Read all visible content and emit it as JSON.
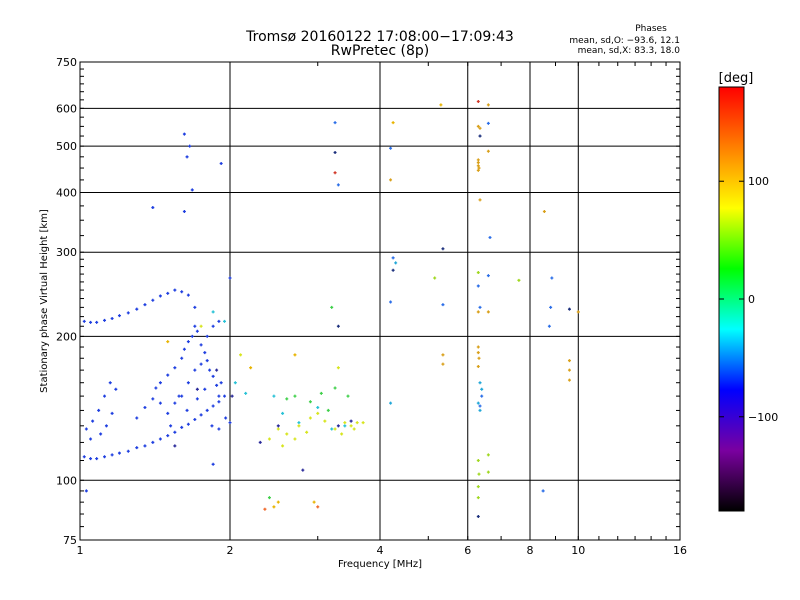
{
  "chart_data": {
    "type": "scatter",
    "title": "Tromsø 20160122 17:08:00−17:09:43",
    "subtitle": "RwPretec (8p)",
    "xlabel": "Frequency [MHz]",
    "ylabel": "Stationary phase Virtual Height [km]",
    "x_scale": "log",
    "y_scale": "log",
    "xlim": [
      1,
      16
    ],
    "ylim": [
      75,
      750
    ],
    "x_ticks": [
      "1",
      "2",
      "4",
      "6",
      "8",
      "10",
      "16"
    ],
    "y_ticks": [
      "75",
      "100",
      "200",
      "300",
      "400",
      "500",
      "600",
      "750"
    ],
    "x_gridlines": [
      2,
      4,
      6,
      8,
      10
    ],
    "y_gridlines": [
      100,
      200,
      300,
      400,
      500,
      600
    ],
    "grid": true,
    "info": {
      "heading": "Phases",
      "line1": "mean, sd,O: −93.6, 12.1",
      "line2": "mean, sd,X: 83.3, 18.0"
    },
    "colorbar": {
      "label": "[deg]",
      "range": [
        -180,
        180
      ],
      "ticks": [
        "100",
        "0",
        "−100"
      ],
      "tick_values": [
        100,
        0,
        -100
      ],
      "colors": [
        "#000000",
        "#7a00a0",
        "#0000ff",
        "#00ffff",
        "#00ff00",
        "#ffff00",
        "#ff8000",
        "#ff0000"
      ]
    },
    "series": [
      {
        "color": "#1f3fe0",
        "points": [
          [
            1.02,
            215
          ],
          [
            1.05,
            214
          ],
          [
            1.08,
            214
          ],
          [
            1.12,
            216
          ],
          [
            1.16,
            218
          ],
          [
            1.2,
            221
          ],
          [
            1.25,
            224
          ],
          [
            1.3,
            228
          ],
          [
            1.35,
            233
          ],
          [
            1.4,
            238
          ],
          [
            1.45,
            243
          ],
          [
            1.5,
            246
          ],
          [
            1.55,
            250
          ],
          [
            1.6,
            248
          ],
          [
            1.65,
            244
          ],
          [
            1.7,
            230
          ],
          [
            1.02,
            112
          ],
          [
            1.05,
            111
          ],
          [
            1.08,
            111
          ],
          [
            1.12,
            112
          ],
          [
            1.16,
            113
          ],
          [
            1.2,
            114
          ],
          [
            1.25,
            115
          ],
          [
            1.3,
            117
          ],
          [
            1.35,
            118
          ],
          [
            1.4,
            120
          ],
          [
            1.45,
            122
          ],
          [
            1.5,
            124
          ],
          [
            1.55,
            126
          ],
          [
            1.6,
            129
          ],
          [
            1.65,
            131
          ],
          [
            1.7,
            134
          ],
          [
            1.75,
            137
          ],
          [
            1.8,
            140
          ],
          [
            1.85,
            143
          ],
          [
            1.9,
            146
          ],
          [
            1.03,
            128
          ],
          [
            1.06,
            133
          ],
          [
            1.09,
            140
          ],
          [
            1.12,
            150
          ],
          [
            1.15,
            160
          ],
          [
            1.18,
            155
          ],
          [
            1.1,
            125
          ],
          [
            1.05,
            122
          ],
          [
            1.13,
            130
          ],
          [
            1.16,
            138
          ],
          [
            1.3,
            135
          ],
          [
            1.35,
            142
          ],
          [
            1.4,
            148
          ],
          [
            1.42,
            156
          ],
          [
            1.45,
            160
          ],
          [
            1.5,
            166
          ],
          [
            1.55,
            172
          ],
          [
            1.6,
            180
          ],
          [
            1.62,
            188
          ],
          [
            1.65,
            195
          ],
          [
            1.68,
            200
          ],
          [
            1.7,
            210
          ],
          [
            1.72,
            205
          ],
          [
            1.75,
            192
          ],
          [
            1.78,
            185
          ],
          [
            1.8,
            178
          ],
          [
            1.82,
            170
          ],
          [
            1.85,
            165
          ],
          [
            1.88,
            158
          ],
          [
            1.9,
            150
          ],
          [
            1.92,
            160
          ],
          [
            1.95,
            150
          ],
          [
            1.5,
            138
          ],
          [
            1.55,
            145
          ],
          [
            1.6,
            150
          ],
          [
            1.65,
            160
          ],
          [
            1.7,
            170
          ],
          [
            1.75,
            175
          ],
          [
            1.8,
            200
          ],
          [
            1.85,
            210
          ],
          [
            1.9,
            215
          ],
          [
            1.45,
            145
          ],
          [
            1.52,
            130
          ],
          [
            1.58,
            150
          ],
          [
            1.64,
            140
          ],
          [
            1.72,
            148
          ],
          [
            1.78,
            155
          ],
          [
            1.84,
            130
          ],
          [
            1.9,
            128
          ],
          [
            1.96,
            135
          ],
          [
            2.0,
            132
          ],
          [
            1.62,
            530
          ],
          [
            1.64,
            475
          ],
          [
            1.66,
            500
          ],
          [
            1.68,
            405
          ],
          [
            1.62,
            365
          ],
          [
            1.92,
            460
          ],
          [
            1.4,
            372
          ],
          [
            1.85,
            108
          ],
          [
            1.03,
            95
          ],
          [
            2.0,
            265
          ]
        ]
      },
      {
        "color": "#2a2a9a",
        "points": [
          [
            1.72,
            155
          ],
          [
            1.88,
            170
          ],
          [
            2.02,
            150
          ],
          [
            1.55,
            118
          ],
          [
            2.3,
            120
          ],
          [
            2.5,
            130
          ],
          [
            2.8,
            105
          ],
          [
            3.3,
            130
          ],
          [
            3.5,
            133
          ]
        ]
      },
      {
        "color": "#29c2d6",
        "points": [
          [
            1.95,
            215
          ],
          [
            2.05,
            160
          ],
          [
            2.15,
            152
          ],
          [
            2.45,
            150
          ],
          [
            2.55,
            138
          ],
          [
            2.75,
            132
          ],
          [
            3.0,
            142
          ],
          [
            3.2,
            128
          ],
          [
            3.4,
            130
          ],
          [
            1.85,
            225
          ]
        ]
      },
      {
        "color": "#3fd04a",
        "points": [
          [
            2.6,
            148
          ],
          [
            2.7,
            150
          ],
          [
            2.9,
            146
          ],
          [
            3.05,
            152
          ],
          [
            3.15,
            140
          ],
          [
            3.25,
            156
          ],
          [
            3.45,
            150
          ],
          [
            2.4,
            92
          ],
          [
            3.2,
            230
          ]
        ]
      },
      {
        "color": "#d7e51e",
        "points": [
          [
            2.4,
            122
          ],
          [
            2.5,
            128
          ],
          [
            2.6,
            125
          ],
          [
            2.75,
            130
          ],
          [
            2.9,
            135
          ],
          [
            3.0,
            138
          ],
          [
            3.1,
            133
          ],
          [
            3.25,
            128
          ],
          [
            3.4,
            132
          ],
          [
            3.5,
            130
          ],
          [
            3.6,
            132
          ],
          [
            3.7,
            132
          ],
          [
            2.55,
            118
          ],
          [
            2.7,
            122
          ],
          [
            2.85,
            126
          ],
          [
            3.35,
            125
          ],
          [
            3.55,
            128
          ],
          [
            3.3,
            172
          ],
          [
            1.75,
            210
          ],
          [
            2.1,
            183
          ]
        ]
      },
      {
        "color": "#e8b400",
        "points": [
          [
            1.5,
            195
          ],
          [
            2.2,
            172
          ],
          [
            2.45,
            88
          ],
          [
            2.5,
            90
          ],
          [
            2.7,
            183
          ],
          [
            2.95,
            90
          ],
          [
            4.25,
            560
          ],
          [
            5.3,
            610
          ]
        ]
      },
      {
        "color": "#f06a2c",
        "points": [
          [
            3.0,
            88
          ],
          [
            2.35,
            87
          ]
        ]
      },
      {
        "color": "#d23a2a",
        "points": [
          [
            3.25,
            440
          ],
          [
            6.3,
            620
          ]
        ]
      },
      {
        "color": "#1b2f7c",
        "points": [
          [
            3.25,
            485
          ],
          [
            3.3,
            210
          ],
          [
            4.25,
            275
          ],
          [
            5.35,
            305
          ],
          [
            6.35,
            525
          ],
          [
            9.6,
            228
          ],
          [
            6.3,
            84
          ]
        ]
      },
      {
        "color": "#2b6ee8",
        "points": [
          [
            3.25,
            560
          ],
          [
            3.3,
            415
          ],
          [
            4.2,
            495
          ],
          [
            4.25,
            292
          ],
          [
            4.2,
            236
          ],
          [
            5.35,
            233
          ],
          [
            6.3,
            255
          ],
          [
            6.35,
            230
          ],
          [
            6.6,
            558
          ],
          [
            6.65,
            322
          ],
          [
            6.6,
            268
          ],
          [
            8.5,
            95
          ],
          [
            8.85,
            265
          ],
          [
            8.8,
            230
          ],
          [
            8.75,
            210
          ],
          [
            6.4,
            150
          ],
          [
            6.35,
            143
          ]
        ]
      },
      {
        "color": "#d9a01a",
        "points": [
          [
            6.3,
            455
          ],
          [
            6.32,
            450
          ],
          [
            6.3,
            445
          ],
          [
            6.3,
            462
          ],
          [
            6.3,
            468
          ],
          [
            6.35,
            545
          ],
          [
            6.3,
            550
          ],
          [
            6.35,
            386
          ],
          [
            6.6,
            488
          ],
          [
            6.6,
            225
          ],
          [
            6.3,
            225
          ],
          [
            6.3,
            190
          ],
          [
            6.3,
            185
          ],
          [
            6.32,
            180
          ],
          [
            6.3,
            173
          ],
          [
            9.6,
            178
          ],
          [
            9.6,
            170
          ],
          [
            9.6,
            162
          ],
          [
            10.0,
            225
          ],
          [
            5.35,
            183
          ],
          [
            5.35,
            175
          ],
          [
            6.6,
            610
          ],
          [
            8.55,
            365
          ],
          [
            4.2,
            425
          ]
        ]
      },
      {
        "color": "#a0d820",
        "points": [
          [
            6.3,
            110
          ],
          [
            6.32,
            103
          ],
          [
            6.3,
            97
          ],
          [
            6.6,
            113
          ],
          [
            6.6,
            104
          ],
          [
            6.3,
            272
          ],
          [
            5.15,
            265
          ],
          [
            7.6,
            262
          ],
          [
            6.3,
            92
          ]
        ]
      },
      {
        "color": "#22a8d8",
        "points": [
          [
            6.35,
            160
          ],
          [
            6.4,
            155
          ],
          [
            6.3,
            145
          ],
          [
            6.35,
            140
          ],
          [
            4.2,
            145
          ],
          [
            4.3,
            285
          ]
        ]
      }
    ]
  }
}
